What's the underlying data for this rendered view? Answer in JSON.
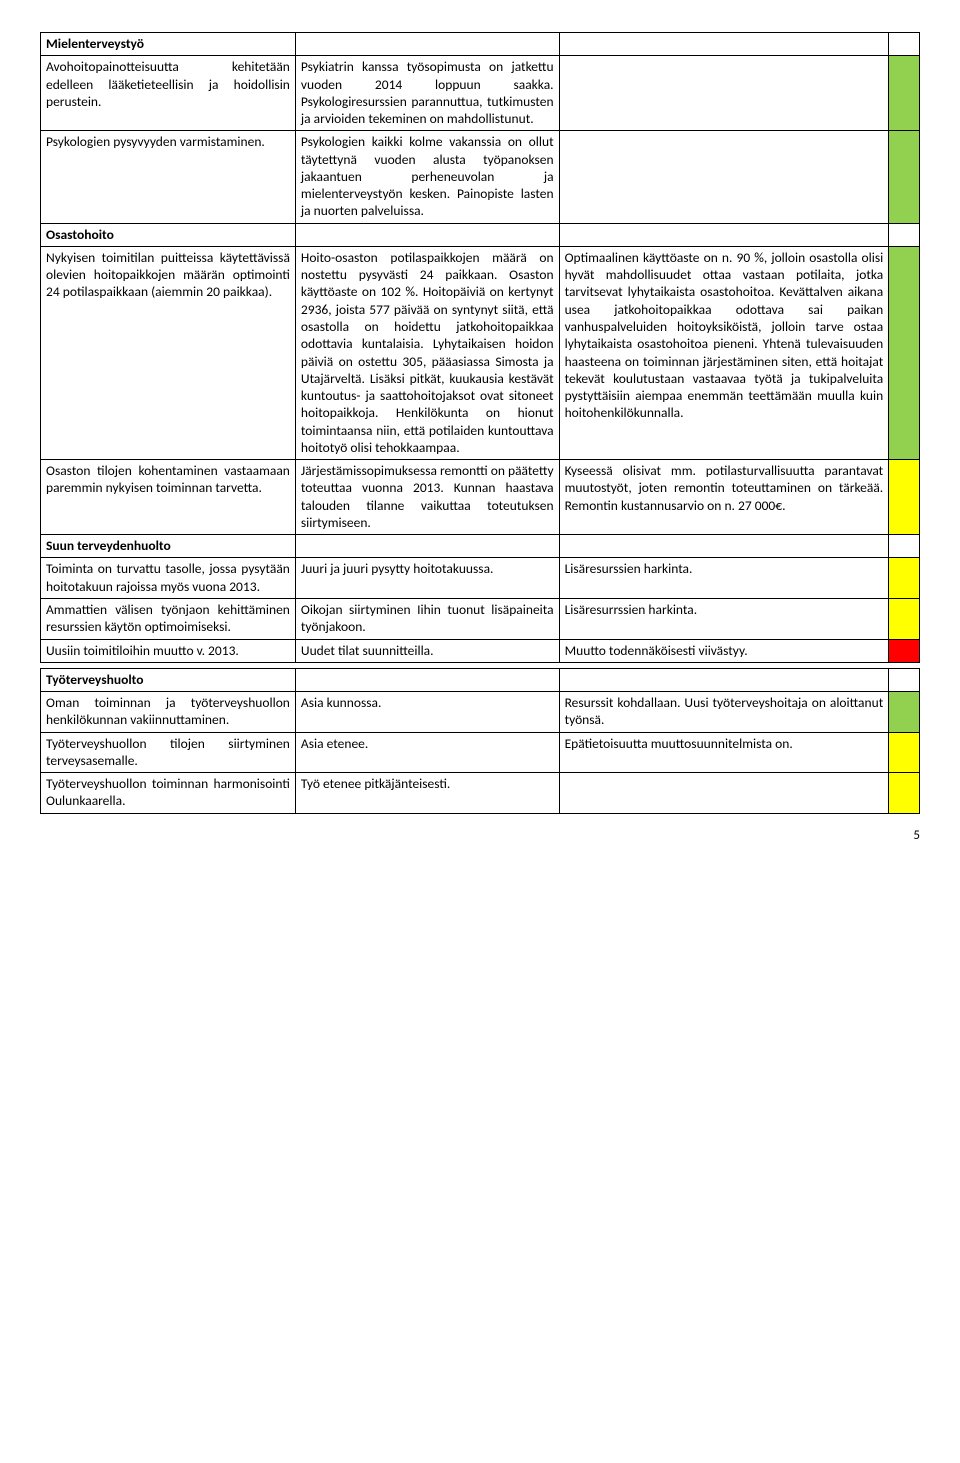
{
  "colors": {
    "green": "#92d050",
    "yellow": "#ffff00",
    "red": "#ff0000"
  },
  "pageNumber": "5",
  "rows": [
    {
      "c1": "Mielenterveystyö",
      "c1Bold": true,
      "c2": "",
      "c3": "",
      "c4Color": ""
    },
    {
      "c1": "Avohoitopainotteisuutta kehitetään edelleen lääketieteellisin ja hoidollisin perustein.",
      "c2": "Psykiatrin kanssa työsopimusta on jatkettu vuoden 2014 loppuun saakka. Psykologiresurssien parannuttua, tutkimusten ja arvioiden tekeminen on mahdollistunut.",
      "c3": "",
      "c4Color": "green"
    },
    {
      "c1": "Psykologien pysyvyyden varmistaminen.",
      "c2": "Psykologien kaikki kolme vakanssia on ollut täytettynä vuoden alusta työpanoksen jakaantuen perheneuvolan ja mielenterveystyön kesken. Painopiste lasten ja nuorten palveluissa.",
      "c3": "",
      "c4Color": "green"
    },
    {
      "c1": "Osastohoito",
      "c1Bold": true,
      "c2": "",
      "c3": "",
      "c4Color": ""
    },
    {
      "c1": "Nykyisen toimitilan puitteissa käytettävissä olevien hoitopaikkojen määrän optimointi 24 potilaspaikkaan (aiemmin 20 paikkaa).",
      "c2": "Hoito-osaston potilaspaikkojen määrä on nostettu pysyvästi 24 paikkaan. Osaston käyttöaste on 102 %. Hoitopäiviä on kertynyt 2936, joista 577 päivää on syntynyt siitä, että osastolla on hoidettu jatkohoitopaikkaa odottavia kuntalaisia. Lyhytaikaisen hoidon päiviä on ostettu 305, pääasiassa Simosta ja Utajärveltä. Lisäksi pitkät, kuukausia kestävät kuntoutus- ja saattohoitojaksot ovat sitoneet hoitopaikkoja. Henkilökunta on hionut toimintaansa niin, että potilaiden kuntouttava hoitotyö olisi tehokkaampaa.",
      "c3": "Optimaalinen käyttöaste on n. 90 %, jolloin osastolla olisi hyvät mahdollisuudet ottaa vastaan potilaita, jotka tarvitsevat lyhytaikaista osastohoitoa. Kevättalven aikana usea jatkohoitopaikkaa odottava sai paikan vanhuspalveluiden hoitoyksiköistä, jolloin tarve ostaa lyhytaikaista osastohoitoa pieneni. Yhtenä tulevaisuuden haasteena on toiminnan järjestäminen siten, että hoitajat tekevät koulutustaan vastaavaa työtä ja tukipalveluita pystyttäisiin aiempaa enemmän teettämään muulla kuin hoitohenkilökunnalla.",
      "c4Color": "green"
    },
    {
      "c1": "Osaston tilojen kohentaminen vastaamaan paremmin nykyisen toiminnan tarvetta.",
      "c2": "Järjestämissopimuksessa remontti on päätetty toteuttaa vuonna 2013. Kunnan haastava talouden tilanne vaikuttaa toteutuksen siirtymiseen.",
      "c3": "Kyseessä olisivat mm. potilasturvallisuutta parantavat muutostyöt, joten remontin toteuttaminen on tärkeää. Remontin kustannusarvio on n. 27 000€.",
      "c4Color": "yellow"
    },
    {
      "c1": "Suun terveydenhuolto",
      "c1Bold": true,
      "c2": "",
      "c3": "",
      "c4Color": ""
    },
    {
      "c1": "Toiminta on turvattu tasolle, jossa pysytään hoitotakuun rajoissa myös vuona 2013.",
      "c2": "Juuri ja juuri pysytty hoitotakuussa.",
      "c3": "Lisäresurssien harkinta.",
      "c4Color": "yellow"
    },
    {
      "c1": "Ammattien välisen työnjaon kehittäminen resurssien käytön optimoimiseksi.",
      "c2": "Oikojan siirtyminen Iihin tuonut lisäpaineita työnjakoon.",
      "c3": "Lisäresurrssien harkinta.",
      "c4Color": "yellow"
    },
    {
      "c1": "Uusiin toimitiloihin muutto v. 2013.",
      "c2": "Uudet tilat suunnitteilla.",
      "c3": "Muutto todennäköisesti viivästyy.",
      "c4Color": "red"
    },
    {
      "spacer": true
    },
    {
      "c1": "Työterveyshuolto",
      "c1Bold": true,
      "c2": "",
      "c3": "",
      "c4Color": ""
    },
    {
      "c1": "Oman toiminnan ja työterveyshuollon henkilökunnan vakiinnuttaminen.",
      "c2": "Asia kunnossa.",
      "c3": "Resurssit kohdallaan. Uusi työterveyshoitaja on aloittanut työnsä.",
      "c4Color": "green"
    },
    {
      "c1": "Työterveyshuollon tilojen siirtyminen terveysasemalle.",
      "c2": "Asia etenee.",
      "c3": "Epätietoisuutta muuttosuunnitelmista on.",
      "c4Color": "yellow"
    },
    {
      "c1": "Työterveyshuollon toiminnan harmonisointi Oulunkaarella.",
      "c2": "Työ etenee pitkäjänteisesti.",
      "c3": "",
      "c4Color": "yellow"
    }
  ]
}
